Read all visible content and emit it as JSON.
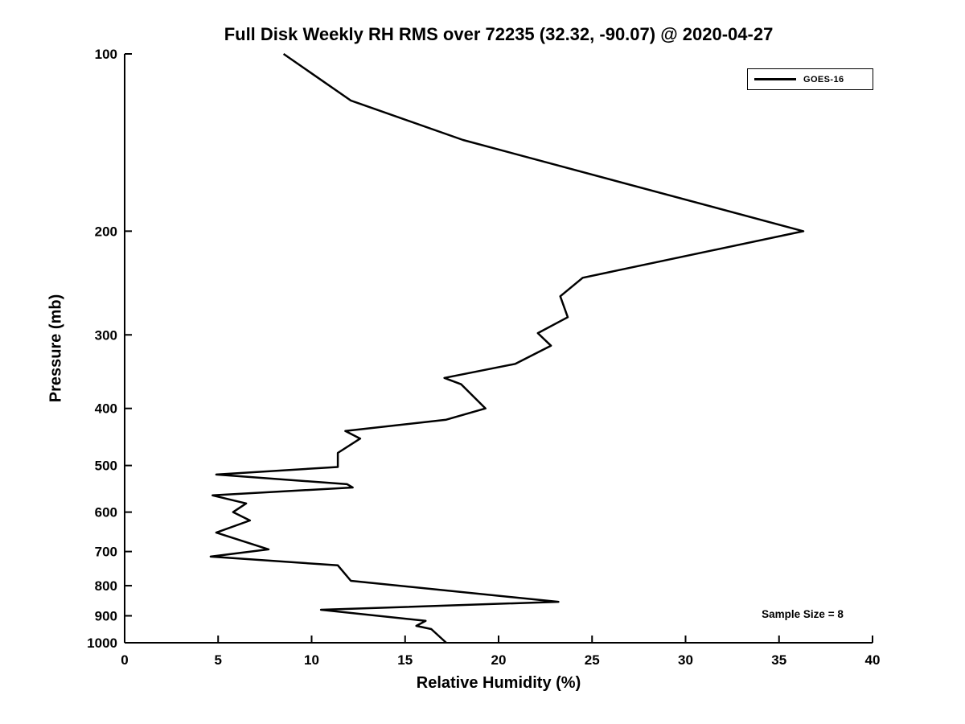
{
  "title": "Full Disk Weekly RH RMS over 72235 (32.32, -90.07) @ 2020-04-27",
  "annotation": "Sample Size = 8",
  "colors": {
    "line": "#000000",
    "background": "#ffffff",
    "text": "#000000"
  },
  "chart_data": {
    "type": "line",
    "title": "Full Disk Weekly RH RMS over 72235 (32.32, -90.07) @ 2020-04-27",
    "xlabel": "Relative Humidity (%)",
    "ylabel": "Pressure (mb)",
    "xlim": [
      0,
      40
    ],
    "xticks": [
      0,
      5,
      10,
      15,
      20,
      25,
      30,
      35,
      40
    ],
    "ylim": [
      100,
      1000
    ],
    "yticks": [
      100,
      200,
      300,
      400,
      500,
      600,
      700,
      800,
      900,
      1000
    ],
    "yscale": "log",
    "y_inverted": true,
    "grid": false,
    "legend": {
      "position": "top-right",
      "entries": [
        {
          "label": "GOES-16",
          "color": "#000000"
        }
      ]
    },
    "annotation": "Sample Size = 8",
    "series": [
      {
        "name": "GOES-16",
        "color": "#000000",
        "pressure_mb": [
          100,
          120,
          140,
          200,
          240,
          258,
          280,
          298,
          313,
          336,
          355,
          364,
          400,
          418,
          437,
          450,
          476,
          503,
          518,
          538,
          545,
          562,
          580,
          600,
          620,
          650,
          694,
          714,
          739,
          765,
          785,
          852,
          879,
          918,
          936,
          948,
          1000
        ],
        "rh_percent": [
          8.5,
          12.1,
          18.1,
          36.3,
          24.5,
          23.3,
          23.7,
          22.1,
          22.8,
          20.9,
          17.1,
          18.0,
          19.3,
          17.2,
          11.8,
          12.6,
          11.4,
          11.4,
          4.9,
          11.9,
          12.2,
          4.7,
          6.5,
          5.8,
          6.7,
          4.9,
          7.7,
          4.6,
          11.4,
          11.8,
          12.1,
          23.2,
          10.5,
          16.1,
          15.6,
          16.4,
          17.2
        ]
      }
    ]
  }
}
